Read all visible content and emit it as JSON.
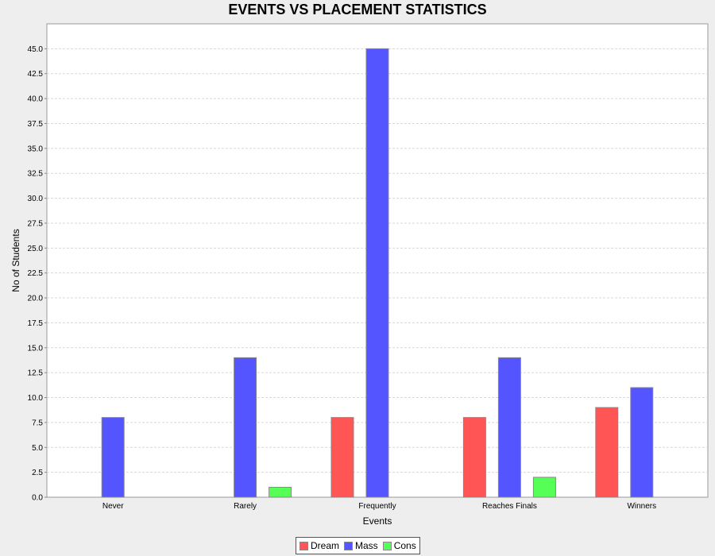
{
  "chart_data": {
    "type": "bar",
    "title": "EVENTS VS PLACEMENT STATISTICS",
    "xlabel": "Events",
    "ylabel": "No of Students",
    "categories": [
      "Never",
      "Rarely",
      "Frequently",
      "Reaches Finals",
      "Winners"
    ],
    "series": [
      {
        "name": "Dream",
        "color": "#ff5555",
        "values": [
          0,
          0,
          8,
          8,
          9
        ]
      },
      {
        "name": "Mass",
        "color": "#5555ff",
        "values": [
          8,
          14,
          45,
          14,
          11
        ]
      },
      {
        "name": "Cons",
        "color": "#55ff55",
        "values": [
          0,
          1,
          0,
          2,
          0
        ]
      }
    ],
    "ylim": [
      0,
      47.5
    ],
    "yticks": [
      "0.0",
      "2.5",
      "5.0",
      "7.5",
      "10.0",
      "12.5",
      "15.0",
      "17.5",
      "20.0",
      "22.5",
      "25.0",
      "27.5",
      "30.0",
      "32.5",
      "35.0",
      "37.5",
      "40.0",
      "42.5",
      "45.0"
    ],
    "grid": true,
    "legend_position": "bottom-center"
  }
}
